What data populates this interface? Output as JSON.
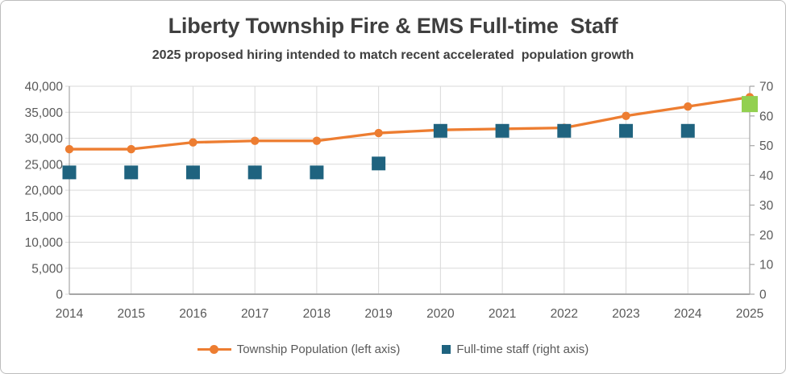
{
  "colors": {
    "title_text": "#3f3f3f",
    "axis_text": "#595959",
    "gridline": "#d9d9d9",
    "axis_line": "#a6a6a6",
    "population_line": "#ED7D31",
    "staff_square": "#1F637F",
    "proposed_square": "#92D050"
  },
  "chart_data": {
    "type": "combo (line + square scatter, dual axis)",
    "title": "Liberty Township Fire & EMS Full-time  Staff",
    "subtitle": "2025 proposed hiring intended to match recent accelerated  population growth",
    "categories": [
      "2014",
      "2015",
      "2016",
      "2017",
      "2018",
      "2019",
      "2020",
      "2021",
      "2022",
      "2023",
      "2024",
      "2025"
    ],
    "series": [
      {
        "name": "Township Population (left axis)",
        "chart_type": "line",
        "axis": "left",
        "marker": "circle",
        "color": "#ED7D31",
        "values": [
          27900,
          27900,
          29200,
          29500,
          29500,
          31000,
          31600,
          31800,
          32000,
          34300,
          36100,
          37900
        ]
      },
      {
        "name": "Full-time staff (right axis)",
        "chart_type": "scatter",
        "axis": "right",
        "marker": "square",
        "color": "#1F637F",
        "values": [
          41,
          41,
          41,
          41,
          41,
          44,
          55,
          55,
          55,
          55,
          55,
          64
        ],
        "highlight_last_point": true,
        "highlight_color": "#92D050"
      }
    ],
    "left_axis": {
      "min": 0,
      "max": 40000,
      "step": 5000,
      "labels": [
        "0",
        "5,000",
        "10,000",
        "15,000",
        "20,000",
        "25,000",
        "30,000",
        "35,000",
        "40,000"
      ]
    },
    "right_axis": {
      "min": 0,
      "max": 70,
      "step": 10,
      "labels": [
        "0",
        "10",
        "20",
        "30",
        "40",
        "50",
        "60",
        "70"
      ]
    },
    "grid": "horizontal and vertical, light gray",
    "legend_position": "bottom-center"
  },
  "legend": {
    "items": [
      {
        "label": "Township Population (left axis)",
        "swatch": "line-circle",
        "color": "#ED7D31"
      },
      {
        "label": "Full-time staff (right axis)",
        "swatch": "square",
        "color": "#1F637F"
      }
    ]
  }
}
